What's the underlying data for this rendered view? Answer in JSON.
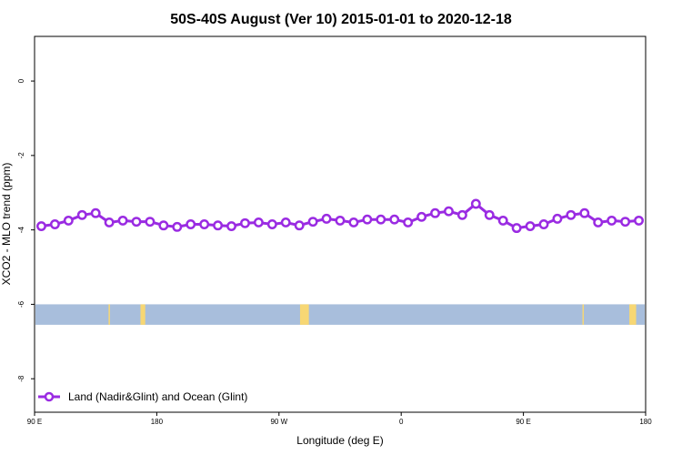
{
  "chart_data": {
    "type": "line",
    "title": "50S-40S August (Ver 10)   2015-01-01 to 2020-12-18",
    "xlabel": "Longitude (deg E)",
    "ylabel": "XCO2 - MLO trend (ppm)",
    "x_ticks": [
      {
        "value": 90,
        "label": "90 E"
      },
      {
        "value": 180,
        "label": "180"
      },
      {
        "value": 270,
        "label": "90 W"
      },
      {
        "value": 360,
        "label": "0"
      },
      {
        "value": 450,
        "label": "90 E"
      },
      {
        "value": 540,
        "label": "180"
      }
    ],
    "y_ticks": [
      0,
      -2,
      -4,
      -6,
      -8
    ],
    "xlim": [
      90,
      540
    ],
    "ylim": [
      -8.9,
      1.2
    ],
    "grid": false,
    "legend_position": "bottom-left",
    "colors": {
      "series": "#9a2be2",
      "ocean_band": "#a8bedc",
      "land_patch": "#f7d774"
    },
    "series": [
      {
        "name": "Land (Nadir&Glint) and Ocean (Glint)",
        "x": [
          95,
          105,
          115,
          125,
          135,
          145,
          155,
          165,
          175,
          185,
          195,
          205,
          215,
          225,
          235,
          245,
          255,
          265,
          275,
          285,
          295,
          305,
          315,
          325,
          335,
          345,
          355,
          365,
          375,
          385,
          395,
          405,
          415,
          425,
          435,
          445,
          455,
          465,
          475,
          485,
          495,
          505,
          515,
          525,
          535
        ],
        "values": [
          -3.9,
          -3.85,
          -3.75,
          -3.6,
          -3.55,
          -3.8,
          -3.75,
          -3.78,
          -3.78,
          -3.88,
          -3.92,
          -3.85,
          -3.85,
          -3.88,
          -3.9,
          -3.82,
          -3.8,
          -3.85,
          -3.8,
          -3.88,
          -3.78,
          -3.7,
          -3.75,
          -3.8,
          -3.72,
          -3.72,
          -3.72,
          -3.8,
          -3.65,
          -3.55,
          -3.5,
          -3.6,
          -3.3,
          -3.6,
          -3.75,
          -3.95,
          -3.9,
          -3.85,
          -3.7,
          -3.6,
          -3.55,
          -3.8,
          -3.75,
          -3.78,
          -3.75
        ]
      }
    ],
    "ocean_band": {
      "y_top": -6.0,
      "y_bottom": -6.55
    },
    "land_patches": [
      {
        "x0": 144.5,
        "x1": 145.3
      },
      {
        "x0": 168.0,
        "x1": 171.5
      },
      {
        "x0": 285.5,
        "x1": 292.0
      },
      {
        "x0": 493.5,
        "x1": 494.5
      },
      {
        "x0": 528.0,
        "x1": 533.0
      }
    ]
  }
}
